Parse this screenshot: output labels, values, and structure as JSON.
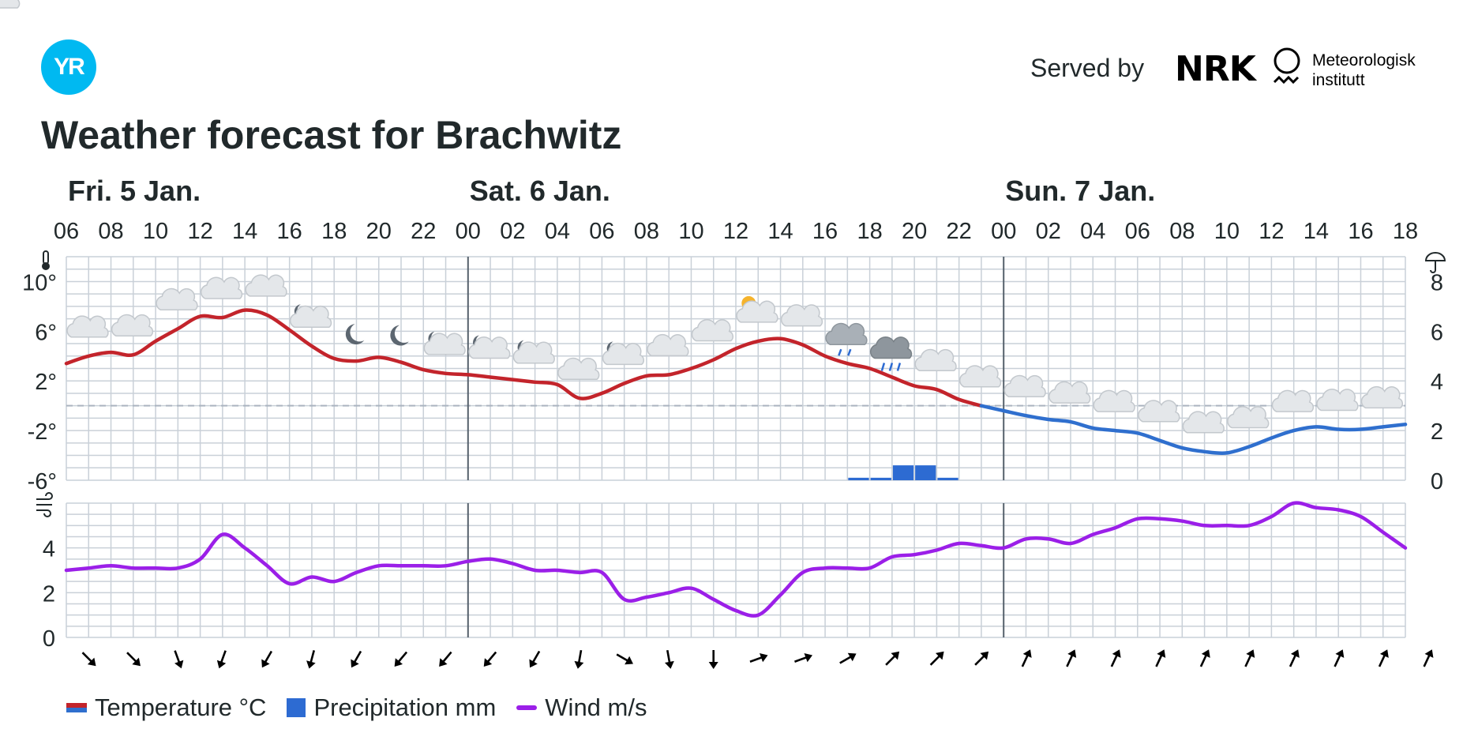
{
  "header": {
    "logo_text": "YR",
    "title": "Weather forecast for Brachwitz",
    "served_by": "Served by",
    "nrk_text": "NRK",
    "met_line1": "Meteorologisk",
    "met_line2": "institutt"
  },
  "colors": {
    "temp_warm": "#c3242b",
    "temp_cold": "#2f6fce",
    "precipitation": "#2d6bd2",
    "wind": "#9b1fe8",
    "grid": "#c9d0d8",
    "logo": "#00b9f1"
  },
  "legend": [
    {
      "key": "temp",
      "label": "Temperature °C"
    },
    {
      "key": "prec",
      "label": "Precipitation mm"
    },
    {
      "key": "wind",
      "label": "Wind m/s"
    }
  ],
  "chart_data": {
    "type": "line",
    "days": [
      {
        "label": "Fri. 5 Jan.",
        "start_hour_index": 0
      },
      {
        "label": "Sat. 6 Jan.",
        "start_hour_index": 9
      },
      {
        "label": "Sun. 7 Jan.",
        "start_hour_index": 21
      }
    ],
    "hour_labels": [
      "06",
      "08",
      "10",
      "12",
      "14",
      "16",
      "18",
      "20",
      "22",
      "00",
      "02",
      "04",
      "06",
      "08",
      "10",
      "12",
      "14",
      "16",
      "18",
      "20",
      "22",
      "00",
      "02",
      "04",
      "06",
      "08",
      "10",
      "12",
      "14",
      "16",
      "18"
    ],
    "temperature": {
      "name": "Temperature °C",
      "ylim": [
        -6,
        12
      ],
      "ticks": [
        -6,
        -2,
        2,
        6,
        10
      ],
      "tick_labels": [
        "-6°",
        "-2°",
        "2°",
        "6°",
        "10°"
      ],
      "freezing_line": 0,
      "values": [
        3.4,
        4.0,
        4.3,
        4.1,
        5.2,
        6.2,
        7.2,
        7.1,
        7.7,
        7.3,
        6.1,
        4.8,
        3.8,
        3.6,
        3.9,
        3.5,
        2.9,
        2.6,
        2.5,
        2.3,
        2.1,
        1.9,
        1.7,
        0.6,
        1.0,
        1.8,
        2.4,
        2.5,
        3.0,
        3.7,
        4.6,
        5.2,
        5.4,
        4.9,
        4.0,
        3.4,
        3.0,
        2.3,
        1.6,
        1.3,
        0.5,
        0.0,
        -0.4,
        -0.8,
        -1.1,
        -1.3,
        -1.8,
        -2.0,
        -2.2,
        -2.8,
        -3.4,
        -3.7,
        -3.8,
        -3.3,
        -2.6,
        -2.0,
        -1.7,
        -1.9,
        -1.9,
        -1.7,
        -1.5
      ]
    },
    "precipitation": {
      "name": "Precipitation mm",
      "ylim": [
        0,
        9
      ],
      "ticks": [
        0,
        2,
        4,
        6,
        8
      ],
      "bars": [
        {
          "from": 35,
          "to": 36,
          "value": 0.1
        },
        {
          "from": 36,
          "to": 37,
          "value": 0.1
        },
        {
          "from": 37,
          "to": 38,
          "value": 0.6
        },
        {
          "from": 38,
          "to": 39,
          "value": 0.6
        },
        {
          "from": 39,
          "to": 40,
          "value": 0.1
        }
      ]
    },
    "wind": {
      "name": "Wind m/s",
      "ylim": [
        0,
        6
      ],
      "ticks": [
        0,
        2,
        4
      ],
      "values": [
        3.0,
        3.1,
        3.2,
        3.1,
        3.1,
        3.1,
        3.5,
        4.6,
        4.0,
        3.2,
        2.4,
        2.7,
        2.5,
        2.9,
        3.2,
        3.2,
        3.2,
        3.2,
        3.4,
        3.5,
        3.3,
        3.0,
        3.0,
        2.9,
        2.9,
        1.7,
        1.8,
        2.0,
        2.2,
        1.7,
        1.2,
        1.0,
        1.9,
        2.9,
        3.1,
        3.1,
        3.1,
        3.6,
        3.7,
        3.9,
        4.2,
        4.1,
        4.0,
        4.4,
        4.4,
        4.2,
        4.6,
        4.9,
        5.3,
        5.3,
        5.2,
        5.0,
        5.0,
        5.0,
        5.4,
        6.0,
        5.8,
        5.7,
        5.4,
        4.7,
        4.0
      ]
    },
    "wind_direction_from_deg": [
      315,
      315,
      340,
      20,
      30,
      15,
      30,
      40,
      40,
      40,
      30,
      10,
      300,
      350,
      0,
      250,
      250,
      240,
      225,
      225,
      225,
      205,
      205,
      205,
      205,
      205,
      205,
      205,
      205,
      205,
      205
    ],
    "weather_symbols": [
      "cloudy",
      "cloudy",
      "cloudy",
      "cloudy",
      "cloudy",
      "partly-cloudy-night",
      "clear-night",
      "clear-night",
      "partly-cloudy-night",
      "partly-cloudy-night",
      "partly-cloudy-night",
      "cloudy",
      "partly-cloudy-night",
      "cloudy",
      "cloudy",
      "partly-cloudy-day",
      "cloudy",
      "light-rain",
      "rain",
      "cloudy",
      "cloudy",
      "cloudy",
      "cloudy",
      "cloudy",
      "cloudy",
      "cloudy",
      "cloudy",
      "cloudy",
      "cloudy",
      "cloudy",
      "cloudy"
    ],
    "icons": {
      "temperature_axis": "thermometer-icon",
      "precipitation_axis": "umbrella-icon",
      "wind_axis": "wind-icon"
    }
  }
}
